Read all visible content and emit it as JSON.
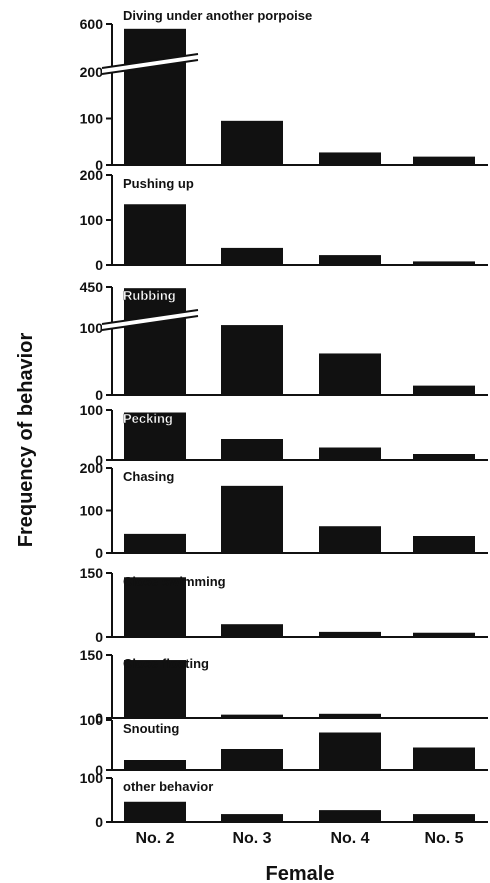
{
  "chart_data": {
    "type": "bar",
    "xlabel": "Female",
    "ylabel": "Frequency of behavior",
    "categories": [
      "No. 2",
      "No. 3",
      "No. 4",
      "No. 5"
    ],
    "panels": [
      {
        "title": "Diving under another porpoise",
        "values": [
          560,
          95,
          27,
          18
        ],
        "yticks": [
          0,
          100,
          200,
          600
        ],
        "axis_break": true
      },
      {
        "title": "Pushing up",
        "values": [
          135,
          38,
          22,
          8
        ],
        "yticks": [
          0,
          100,
          200
        ]
      },
      {
        "title": "Rubbing",
        "values": [
          440,
          125,
          62,
          14
        ],
        "yticks": [
          0,
          100,
          450
        ],
        "axis_break": true
      },
      {
        "title": "Pecking",
        "values": [
          95,
          42,
          25,
          12
        ],
        "yticks": [
          0,
          100
        ]
      },
      {
        "title": "Chasing",
        "values": [
          45,
          158,
          63,
          40
        ],
        "yticks": [
          0,
          100,
          200
        ]
      },
      {
        "title": "Close swimming",
        "values": [
          140,
          30,
          12,
          10
        ],
        "yticks": [
          0,
          150
        ]
      },
      {
        "title": "Close floating",
        "values": [
          138,
          8,
          10,
          0
        ],
        "yticks": [
          0,
          150
        ]
      },
      {
        "title": "Snouting",
        "values": [
          20,
          42,
          75,
          45
        ],
        "yticks": [
          0,
          100
        ]
      },
      {
        "title": "other behavior",
        "values": [
          46,
          18,
          27,
          18
        ],
        "yticks": [
          0,
          100
        ]
      }
    ]
  }
}
